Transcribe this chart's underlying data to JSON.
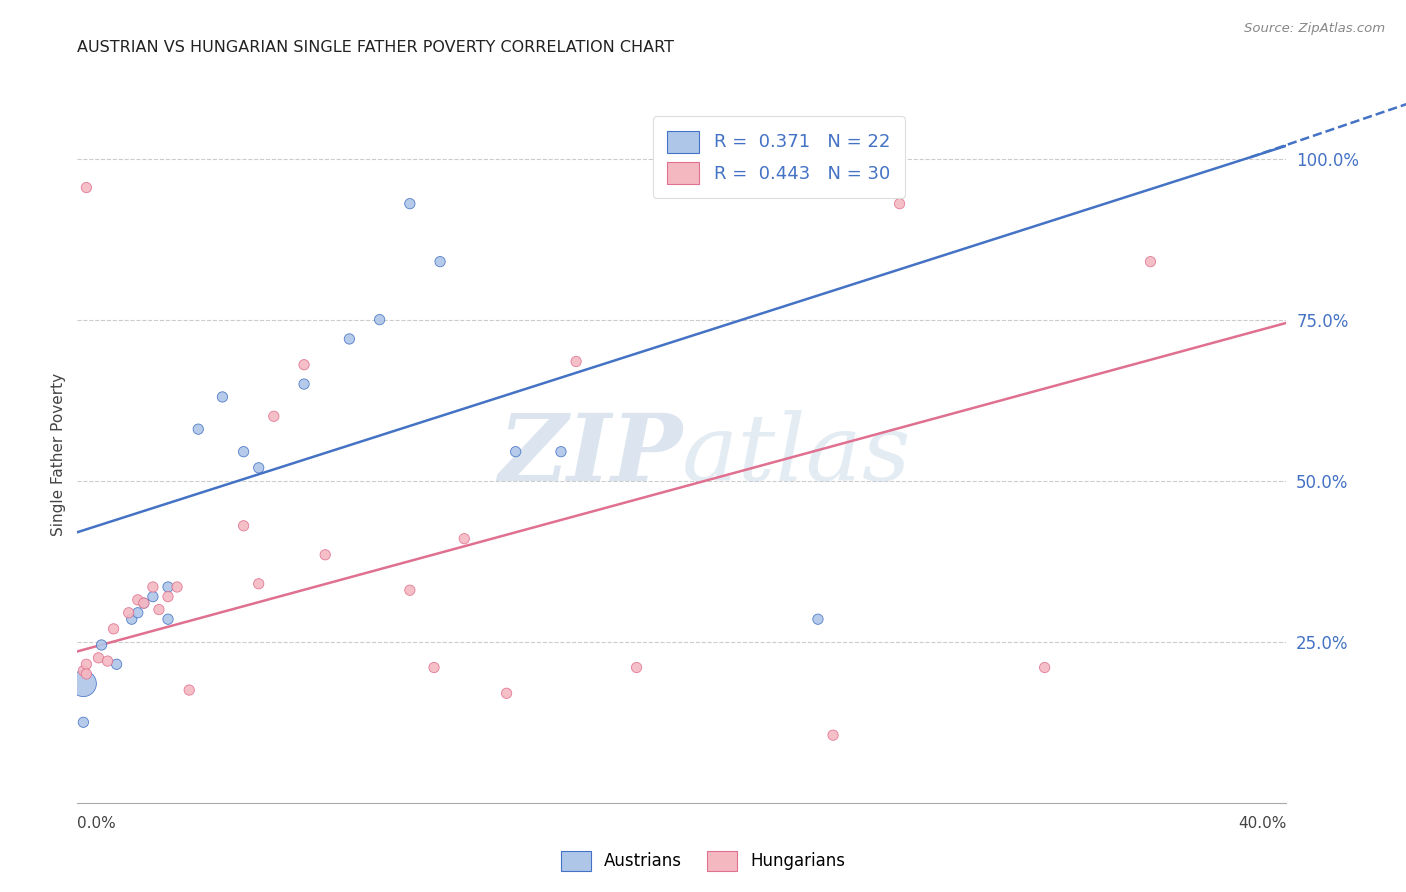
{
  "title": "AUSTRIAN VS HUNGARIAN SINGLE FATHER POVERTY CORRELATION CHART",
  "source": "Source: ZipAtlas.com",
  "ylabel": "Single Father Poverty",
  "ytick_labels": [
    "25.0%",
    "50.0%",
    "75.0%",
    "100.0%"
  ],
  "ytick_values": [
    0.25,
    0.5,
    0.75,
    1.0
  ],
  "legend_aus": "R =  0.371   N = 22",
  "legend_hun": "R =  0.443   N = 30",
  "legend_label_austrians": "Austrians",
  "legend_label_hungarians": "Hungarians",
  "austrians_color": "#aec6e8",
  "hungarians_color": "#f4b8c1",
  "austrians_line_color": "#4472c4",
  "hungarians_line_color": "#e07090",
  "background_color": "#ffffff",
  "watermark_zip": "ZIP",
  "watermark_atlas": "atlas",
  "watermark_color": "#ccdcee",
  "xmin": 0.0,
  "xmax": 0.4,
  "ymin": 0.0,
  "ymax": 1.08,
  "aus_line_x0": 0.0,
  "aus_line_y0": 0.42,
  "aus_line_x1": 0.4,
  "aus_line_y1": 1.02,
  "aus_line_xdash": 0.44,
  "aus_line_ydash": 1.085,
  "hun_line_x0": 0.0,
  "hun_line_y0": 0.235,
  "hun_line_x1": 0.4,
  "hun_line_y1": 0.745,
  "austrians_x": [
    0.002,
    0.008,
    0.013,
    0.018,
    0.02,
    0.022,
    0.025,
    0.03,
    0.03,
    0.04,
    0.048,
    0.055,
    0.06,
    0.075,
    0.09,
    0.1,
    0.11,
    0.12,
    0.145,
    0.16,
    0.245,
    0.002
  ],
  "austrians_y": [
    0.185,
    0.245,
    0.215,
    0.285,
    0.295,
    0.31,
    0.32,
    0.335,
    0.285,
    0.58,
    0.63,
    0.545,
    0.52,
    0.65,
    0.72,
    0.75,
    0.93,
    0.84,
    0.545,
    0.545,
    0.285,
    0.125
  ],
  "austrians_size": [
    350,
    55,
    55,
    55,
    55,
    55,
    55,
    55,
    55,
    55,
    55,
    55,
    55,
    55,
    55,
    55,
    55,
    55,
    55,
    55,
    55,
    55
  ],
  "hungarians_x": [
    0.002,
    0.003,
    0.007,
    0.01,
    0.012,
    0.017,
    0.02,
    0.022,
    0.025,
    0.027,
    0.03,
    0.033,
    0.037,
    0.055,
    0.06,
    0.065,
    0.075,
    0.082,
    0.11,
    0.118,
    0.128,
    0.142,
    0.165,
    0.185,
    0.25,
    0.272,
    0.32,
    0.355,
    0.003,
    0.003
  ],
  "hungarians_y": [
    0.205,
    0.215,
    0.225,
    0.22,
    0.27,
    0.295,
    0.315,
    0.31,
    0.335,
    0.3,
    0.32,
    0.335,
    0.175,
    0.43,
    0.34,
    0.6,
    0.68,
    0.385,
    0.33,
    0.21,
    0.41,
    0.17,
    0.685,
    0.21,
    0.105,
    0.93,
    0.21,
    0.84,
    0.955,
    0.2
  ],
  "hungarians_size": [
    55,
    55,
    55,
    55,
    55,
    55,
    55,
    55,
    55,
    55,
    55,
    55,
    55,
    55,
    55,
    55,
    55,
    55,
    55,
    55,
    55,
    55,
    55,
    55,
    55,
    55,
    55,
    55,
    55,
    55
  ]
}
